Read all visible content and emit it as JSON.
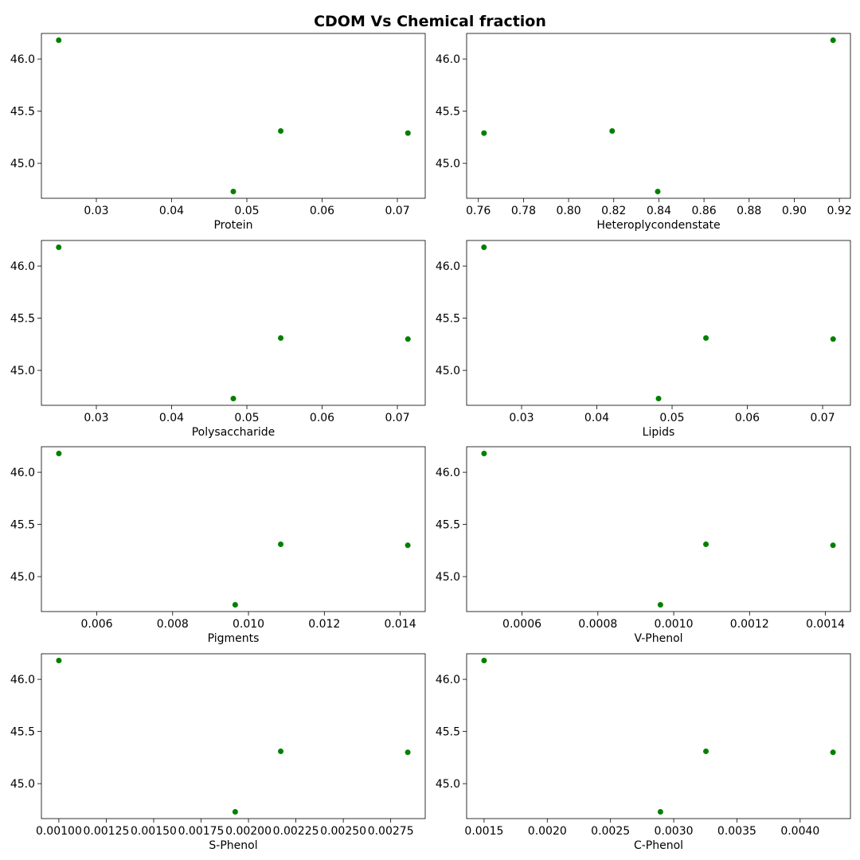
{
  "title": "CDOM Vs Chemical fraction",
  "marker_color": "#008000",
  "chart_data": [
    {
      "type": "scatter",
      "xlabel": "Protein",
      "x": [
        0.025,
        0.0482,
        0.0545,
        0.0714
      ],
      "y": [
        46.18,
        44.73,
        45.31,
        45.29
      ],
      "xlim": [
        0.0227,
        0.0737
      ],
      "ylim": [
        44.665,
        46.245
      ],
      "xticks": [
        0.03,
        0.04,
        0.05,
        0.06,
        0.07
      ],
      "xtick_labels": [
        "0.03",
        "0.04",
        "0.05",
        "0.06",
        "0.07"
      ],
      "yticks": [
        45.0,
        45.5,
        46.0
      ],
      "ytick_labels": [
        "45.0",
        "45.5",
        "46.0"
      ],
      "grid": false
    },
    {
      "type": "scatter",
      "xlabel": "Heteroplycondenstate",
      "x": [
        0.7625,
        0.8193,
        0.8395,
        0.9172
      ],
      "y": [
        45.29,
        45.31,
        44.73,
        46.18
      ],
      "xlim": [
        0.7548,
        0.9249
      ],
      "ylim": [
        44.665,
        46.245
      ],
      "xticks": [
        0.76,
        0.78,
        0.8,
        0.82,
        0.84,
        0.86,
        0.88,
        0.9,
        0.92
      ],
      "xtick_labels": [
        "0.76",
        "0.78",
        "0.80",
        "0.82",
        "0.84",
        "0.86",
        "0.88",
        "0.90",
        "0.92"
      ],
      "yticks": [
        45.0,
        45.5,
        46.0
      ],
      "ytick_labels": [
        "45.0",
        "45.5",
        "46.0"
      ],
      "grid": false
    },
    {
      "type": "scatter",
      "xlabel": "Polysaccharide",
      "x": [
        0.025,
        0.0482,
        0.0545,
        0.0714
      ],
      "y": [
        46.18,
        44.73,
        45.31,
        45.3
      ],
      "xlim": [
        0.0227,
        0.0737
      ],
      "ylim": [
        44.665,
        46.245
      ],
      "xticks": [
        0.03,
        0.04,
        0.05,
        0.06,
        0.07
      ],
      "xtick_labels": [
        "0.03",
        "0.04",
        "0.05",
        "0.06",
        "0.07"
      ],
      "yticks": [
        45.0,
        45.5,
        46.0
      ],
      "ytick_labels": [
        "45.0",
        "45.5",
        "46.0"
      ],
      "grid": false
    },
    {
      "type": "scatter",
      "xlabel": "Lipids",
      "x": [
        0.025,
        0.0482,
        0.0545,
        0.0714
      ],
      "y": [
        46.18,
        44.73,
        45.31,
        45.3
      ],
      "xlim": [
        0.0227,
        0.0737
      ],
      "ylim": [
        44.665,
        46.245
      ],
      "xticks": [
        0.03,
        0.04,
        0.05,
        0.06,
        0.07
      ],
      "xtick_labels": [
        "0.03",
        "0.04",
        "0.05",
        "0.06",
        "0.07"
      ],
      "yticks": [
        45.0,
        45.5,
        46.0
      ],
      "ytick_labels": [
        "45.0",
        "45.5",
        "46.0"
      ],
      "grid": false
    },
    {
      "type": "scatter",
      "xlabel": "Pigments",
      "x": [
        0.005,
        0.00965,
        0.01085,
        0.0142
      ],
      "y": [
        46.18,
        44.73,
        45.31,
        45.3
      ],
      "xlim": [
        0.00454,
        0.01466
      ],
      "ylim": [
        44.665,
        46.245
      ],
      "xticks": [
        0.006,
        0.008,
        0.01,
        0.012,
        0.014
      ],
      "xtick_labels": [
        "0.006",
        "0.008",
        "0.010",
        "0.012",
        "0.014"
      ],
      "yticks": [
        45.0,
        45.5,
        46.0
      ],
      "ytick_labels": [
        "45.0",
        "45.5",
        "46.0"
      ],
      "grid": false
    },
    {
      "type": "scatter",
      "xlabel": "V-Phenol",
      "x": [
        0.0005,
        0.000965,
        0.001085,
        0.00142
      ],
      "y": [
        46.18,
        44.73,
        45.31,
        45.3
      ],
      "xlim": [
        0.000454,
        0.001466
      ],
      "ylim": [
        44.665,
        46.245
      ],
      "xticks": [
        0.0006,
        0.0008,
        0.001,
        0.0012,
        0.0014
      ],
      "xtick_labels": [
        "0.0006",
        "0.0008",
        "0.0010",
        "0.0012",
        "0.0014"
      ],
      "yticks": [
        45.0,
        45.5,
        46.0
      ],
      "ytick_labels": [
        "45.0",
        "45.5",
        "46.0"
      ],
      "grid": false
    },
    {
      "type": "scatter",
      "xlabel": "S-Phenol",
      "x": [
        0.001,
        0.00193,
        0.00217,
        0.00284
      ],
      "y": [
        46.18,
        44.73,
        45.31,
        45.3
      ],
      "xlim": [
        0.000908,
        0.002932
      ],
      "ylim": [
        44.665,
        46.245
      ],
      "xticks": [
        0.001,
        0.00125,
        0.0015,
        0.00175,
        0.002,
        0.00225,
        0.0025,
        0.00275
      ],
      "xtick_labels": [
        "0.00100",
        "0.00125",
        "0.00150",
        "0.00175",
        "0.00200",
        "0.00225",
        "0.00250",
        "0.00275"
      ],
      "yticks": [
        45.0,
        45.5,
        46.0
      ],
      "ytick_labels": [
        "45.0",
        "45.5",
        "46.0"
      ],
      "grid": false
    },
    {
      "type": "scatter",
      "xlabel": "C-Phenol",
      "x": [
        0.0015,
        0.002895,
        0.003255,
        0.00426
      ],
      "y": [
        46.18,
        44.73,
        45.31,
        45.3
      ],
      "xlim": [
        0.001362,
        0.004398
      ],
      "ylim": [
        44.665,
        46.245
      ],
      "xticks": [
        0.0015,
        0.002,
        0.0025,
        0.003,
        0.0035,
        0.004
      ],
      "xtick_labels": [
        "0.0015",
        "0.0020",
        "0.0025",
        "0.0030",
        "0.0035",
        "0.0040"
      ],
      "yticks": [
        45.0,
        45.5,
        46.0
      ],
      "ytick_labels": [
        "45.0",
        "45.5",
        "46.0"
      ],
      "grid": false
    }
  ]
}
